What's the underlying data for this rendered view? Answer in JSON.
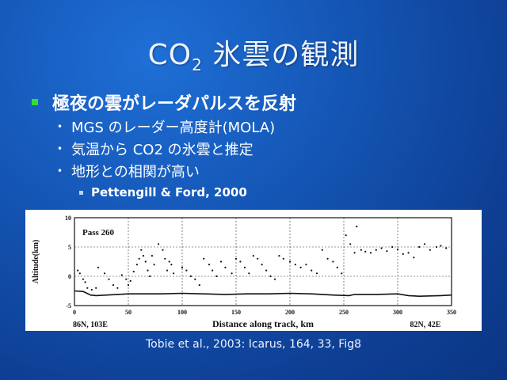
{
  "slide": {
    "title_main": "CO",
    "title_sub": "2",
    "title_rest": " 氷雲の観測",
    "bullet1": "極夜の雲がレーダパルスを反射",
    "sub_bullets": [
      "MGS のレーダー高度計(MOLA)",
      "気温から CO2 の氷雲と推定",
      "地形との相関が高い"
    ],
    "reference": "Pettengill & Ford, 2000",
    "caption": "Tobie et al., 2003: Icarus, 164, 33, Fig8",
    "colors": {
      "bullet_square": "#33dd33",
      "background": "#1558b8"
    }
  },
  "chart_data": {
    "type": "scatter",
    "panel_label": "Pass 260",
    "xlabel": "Distance along track, km",
    "ylabel": "Altitude(km)",
    "xlim": [
      0,
      350
    ],
    "ylim": [
      -5,
      10
    ],
    "x_ticks": [
      "0",
      "50",
      "100",
      "150",
      "200",
      "250",
      "300",
      "350"
    ],
    "y_ticks": [
      "10",
      "5",
      "0",
      "-5"
    ],
    "start_label": "86N, 103E",
    "end_label": "82N, 42E",
    "surface": {
      "x": [
        0,
        8,
        15,
        20,
        30,
        40,
        50,
        60,
        80,
        100,
        120,
        140,
        160,
        180,
        200,
        220,
        240,
        255,
        260,
        280,
        300,
        310,
        320,
        340,
        350
      ],
      "y": [
        -2.5,
        -2.6,
        -3.2,
        -3.3,
        -3.2,
        -3.1,
        -3.0,
        -3.0,
        -3.0,
        -2.9,
        -3.0,
        -3.1,
        -3.0,
        -3.0,
        -2.9,
        -3.0,
        -3.2,
        -3.3,
        -3.1,
        -3.1,
        -3.0,
        -3.3,
        -3.4,
        -3.3,
        -3.2
      ]
    },
    "clouds": {
      "x": [
        3,
        5,
        8,
        10,
        12,
        16,
        20,
        22,
        28,
        32,
        36,
        40,
        44,
        48,
        50,
        52,
        55,
        58,
        60,
        62,
        64,
        66,
        68,
        70,
        72,
        74,
        78,
        82,
        84,
        86,
        88,
        90,
        92,
        100,
        104,
        108,
        112,
        116,
        120,
        125,
        128,
        132,
        136,
        140,
        146,
        150,
        154,
        158,
        162,
        166,
        170,
        174,
        178,
        182,
        186,
        190,
        194,
        200,
        205,
        210,
        215,
        220,
        225,
        230,
        235,
        240,
        244,
        248,
        252,
        256,
        260,
        262,
        266,
        270,
        275,
        280,
        285,
        290,
        295,
        300,
        305,
        310,
        315,
        320,
        325,
        330,
        336,
        340,
        345
      ],
      "y": [
        1.0,
        0.5,
        -0.5,
        -1.0,
        -2.0,
        -2.3,
        -2.0,
        1.5,
        0.5,
        -0.5,
        -1.5,
        -2.0,
        0.2,
        -0.5,
        -1.5,
        -0.8,
        0.8,
        2.0,
        3.0,
        4.5,
        3.5,
        2.5,
        1.0,
        0.0,
        3.5,
        2.0,
        5.5,
        4.5,
        3.0,
        1.0,
        2.5,
        2.0,
        0.5,
        1.5,
        1.0,
        0.0,
        -0.5,
        -1.5,
        3.0,
        2.0,
        1.0,
        0.0,
        2.5,
        1.5,
        0.5,
        3.0,
        2.5,
        1.5,
        0.5,
        3.5,
        3.0,
        2.0,
        1.0,
        0.0,
        -0.5,
        3.5,
        3.0,
        2.5,
        2.0,
        1.5,
        2.0,
        1.0,
        0.5,
        4.5,
        3.0,
        2.5,
        1.5,
        0.5,
        7.0,
        5.5,
        4.0,
        8.5,
        4.5,
        4.2,
        4.0,
        4.5,
        4.8,
        4.3,
        5.0,
        4.6,
        3.8,
        4.0,
        3.2,
        5.0,
        5.5,
        4.5,
        5.0,
        5.2,
        4.8
      ]
    }
  }
}
